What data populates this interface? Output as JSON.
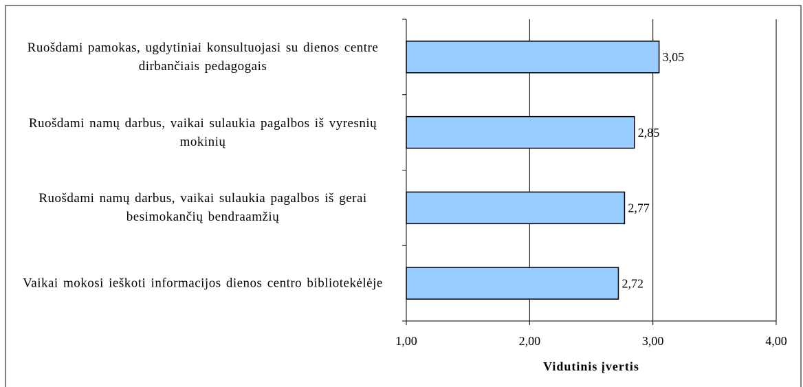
{
  "chart_data": {
    "type": "bar",
    "orientation": "horizontal",
    "categories": [
      "Ruošdami pamokas, ugdytiniai konsultuojasi su dienos centre dirbančiais pedagogais",
      "Ruošdami namų darbus, vaikai sulaukia pagalbos iš vyresnių mokinių",
      "Ruošdami namų darbus, vaikai sulaukia pagalbos iš gerai besimokančių bendraamžių",
      "Vaikai mokosi ieškoti informacijos dienos centro bibliotekėlėje"
    ],
    "values": [
      3.05,
      2.85,
      2.77,
      2.72
    ],
    "value_labels": [
      "3,05",
      "2,85",
      "2,77",
      "2,72"
    ],
    "color": "#99ccff",
    "xlabel": "Vidutinis įvertis",
    "xlim": [
      1,
      4
    ],
    "xticks": [
      {
        "value": 1,
        "label": "1,00"
      },
      {
        "value": 2,
        "label": "2,00"
      },
      {
        "value": 3,
        "label": "3,00"
      },
      {
        "value": 4,
        "label": "4,00"
      }
    ],
    "grid": true
  }
}
